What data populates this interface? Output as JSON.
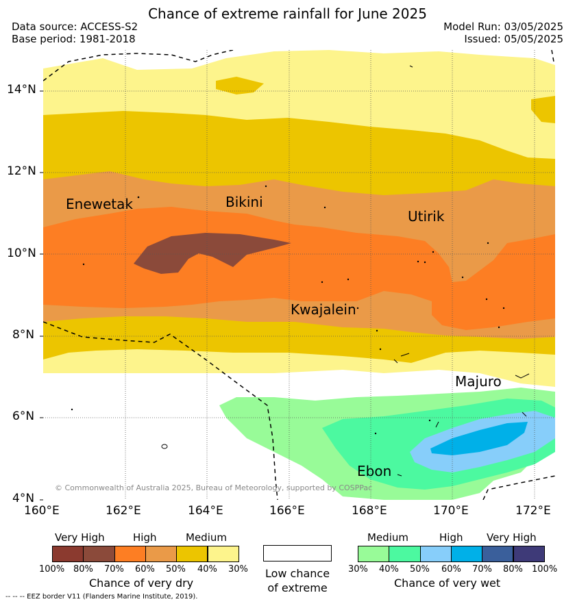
{
  "header": {
    "title": "Chance of extreme rainfall for June 2025",
    "data_source": "Data source: ACCESS-S2",
    "base_period": "Base period: 1981-2018",
    "model_run": "Model Run: 03/05/2025",
    "issued": "Issued: 05/05/2025"
  },
  "map": {
    "lat_ticks": [
      "14°N",
      "12°N",
      "10°N",
      "8°N",
      "6°N",
      "4°N"
    ],
    "lon_ticks": [
      "160°E",
      "162°E",
      "164°E",
      "166°E",
      "168°E",
      "170°E",
      "172°E"
    ],
    "places": [
      "Enewetak",
      "Bikini",
      "Utirik",
      "Kwajalein",
      "Majuro",
      "Ebon"
    ],
    "copyright": "© Commonwealth of Australia 2025, Bureau of Meteorology, supported by COSPPac"
  },
  "legend": {
    "dry": {
      "headers": [
        "Very High",
        "High",
        "Medium"
      ],
      "ticks": [
        "100%",
        "80%",
        "70%",
        "60%",
        "50%",
        "40%",
        "30%"
      ],
      "title": "Chance of very dry",
      "colors": [
        "#8b3a2f",
        "#8b4a3a",
        "#fd7e23",
        "#ea9a48",
        "#ecc500",
        "#fdf48c"
      ]
    },
    "low": {
      "line1": "Low chance",
      "line2": "of extreme"
    },
    "wet": {
      "headers": [
        "Medium",
        "High",
        "Very High"
      ],
      "ticks": [
        "30%",
        "40%",
        "50%",
        "60%",
        "70%",
        "80%",
        "100%"
      ],
      "title": "Chance of very wet",
      "colors": [
        "#98fb98",
        "#4cf9a0",
        "#87cefa",
        "#00b0e8",
        "#3a5f9b",
        "#3e3a78"
      ]
    },
    "eez_note": "-- -- -- EEZ border V11 (Flanders Marine Institute, 2019)."
  }
}
